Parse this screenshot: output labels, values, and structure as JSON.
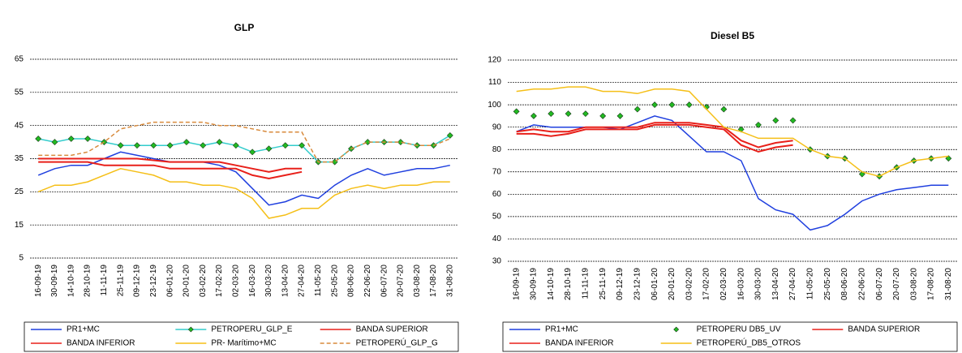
{
  "chart_data": [
    {
      "type": "line",
      "title": "GLP",
      "categories": [
        "16-09-19",
        "30-09-19",
        "14-10-19",
        "28-10-19",
        "11-11-19",
        "25-11-19",
        "09-12-19",
        "23-12-19",
        "06-01-20",
        "20-01-20",
        "03-02-20",
        "17-02-20",
        "02-03-20",
        "16-03-20",
        "30-03-20",
        "13-04-20",
        "27-04-20",
        "11-05-20",
        "25-05-20",
        "08-06-20",
        "22-06-20",
        "06-07-20",
        "20-07-20",
        "03-08-20",
        "17-08-20",
        "31-08-20"
      ],
      "ylim": [
        5,
        65
      ],
      "yticks": [
        5,
        15,
        25,
        35,
        45,
        55,
        65
      ],
      "grid": true,
      "legend": "bottom",
      "series": [
        {
          "name": "PR1+MC",
          "color": "#1f3fdf",
          "values": [
            30,
            32,
            33,
            33,
            35,
            37,
            36,
            35,
            34,
            34,
            34,
            33,
            31,
            26,
            21,
            22,
            24,
            23,
            27,
            30,
            32,
            30,
            31,
            32,
            32,
            33
          ]
        },
        {
          "name": "PETROPERU_GLP_E",
          "color": "#33cccc",
          "marker": "diamond",
          "marker_color": "#22bb22",
          "values": [
            41,
            40,
            41,
            41,
            40,
            39,
            39,
            39,
            39,
            40,
            39,
            40,
            39,
            37,
            38,
            39,
            39,
            34,
            34,
            38,
            40,
            40,
            40,
            39,
            39,
            42
          ]
        },
        {
          "name": "BANDA SUPERIOR",
          "color": "#e8201a",
          "values": [
            35,
            35,
            35,
            35,
            35,
            35,
            35,
            34.5,
            34,
            34,
            34,
            34,
            33,
            32,
            31,
            32,
            32,
            null,
            null,
            null,
            null,
            null,
            null,
            null,
            null,
            null
          ]
        },
        {
          "name": "BANDA INFERIOR",
          "color": "#e8201a",
          "values": [
            34,
            34,
            34,
            34,
            33,
            33,
            33,
            33,
            32,
            32,
            32,
            32,
            32,
            30,
            29,
            30,
            31,
            null,
            null,
            null,
            null,
            null,
            null,
            null,
            null,
            null
          ]
        },
        {
          "name": "PR- Marítimo+MC",
          "color": "#f5bf17",
          "values": [
            25,
            27,
            27,
            28,
            30,
            32,
            31,
            30,
            28,
            28,
            27,
            27,
            26,
            23,
            17,
            18,
            20,
            20,
            24,
            26,
            27,
            26,
            27,
            27,
            28,
            28
          ]
        },
        {
          "name": "PETROPERÚ_GLP_G",
          "color": "#d88a3c",
          "dash": true,
          "values": [
            36,
            36,
            36,
            37,
            40,
            44,
            45,
            46,
            46,
            46,
            46,
            45,
            45,
            44,
            43,
            43,
            43,
            34,
            34,
            38,
            40,
            40,
            40,
            39,
            39,
            41
          ]
        }
      ]
    },
    {
      "type": "line",
      "title": "Diesel B5",
      "categories": [
        "16-09-19",
        "30-09-19",
        "14-10-19",
        "28-10-19",
        "11-11-19",
        "25-11-19",
        "09-12-19",
        "23-12-19",
        "06-01-20",
        "20-01-20",
        "03-02-20",
        "17-02-20",
        "02-03-20",
        "16-03-20",
        "30-03-20",
        "13-04-20",
        "27-04-20",
        "11-05-20",
        "25-05-20",
        "08-06-20",
        "22-06-20",
        "06-07-20",
        "20-07-20",
        "03-08-20",
        "17-08-20",
        "31-08-20"
      ],
      "ylim": [
        30,
        120
      ],
      "yticks": [
        30,
        40,
        50,
        60,
        70,
        80,
        90,
        100,
        110,
        120
      ],
      "grid": true,
      "legend": "bottom",
      "series": [
        {
          "name": "PR1+MC",
          "color": "#1f3fdf",
          "values": [
            88,
            91,
            90,
            90,
            90,
            90,
            89,
            92,
            95,
            93,
            86,
            79,
            79,
            75,
            58,
            53,
            51,
            44,
            46,
            51,
            57,
            60,
            62,
            63,
            64,
            64
          ]
        },
        {
          "name": "PETROPERU DB5_UV",
          "color": "#22bb22",
          "line": false,
          "marker": "diamond",
          "marker_color": "#22bb22",
          "values": [
            97,
            95,
            96,
            96,
            96,
            95,
            95,
            98,
            100,
            100,
            100,
            99,
            98,
            89,
            91,
            93,
            93,
            80,
            77,
            76,
            69,
            68,
            72,
            75,
            76,
            76
          ]
        },
        {
          "name": "BANDA SUPERIOR",
          "color": "#e8201a",
          "values": [
            88,
            89,
            88,
            88,
            90,
            90,
            90,
            90,
            92,
            92,
            92,
            91,
            90,
            84,
            81,
            83,
            84,
            null,
            null,
            null,
            null,
            null,
            null,
            null,
            null,
            null
          ]
        },
        {
          "name": "BANDA INFERIOR",
          "color": "#e8201a",
          "values": [
            87,
            87,
            86,
            87,
            89,
            89,
            89,
            89,
            91,
            91,
            91,
            90,
            89,
            82,
            79,
            81,
            82,
            null,
            null,
            null,
            null,
            null,
            null,
            null,
            null,
            null
          ]
        },
        {
          "name": "PETROPERÚ_DB5_OTROS",
          "color": "#f5bf17",
          "values": [
            106,
            107,
            107,
            108,
            108,
            106,
            106,
            105,
            107,
            107,
            106,
            98,
            90,
            88,
            85,
            85,
            85,
            80,
            77,
            76,
            70,
            68,
            72,
            75,
            76,
            77
          ]
        }
      ]
    }
  ]
}
